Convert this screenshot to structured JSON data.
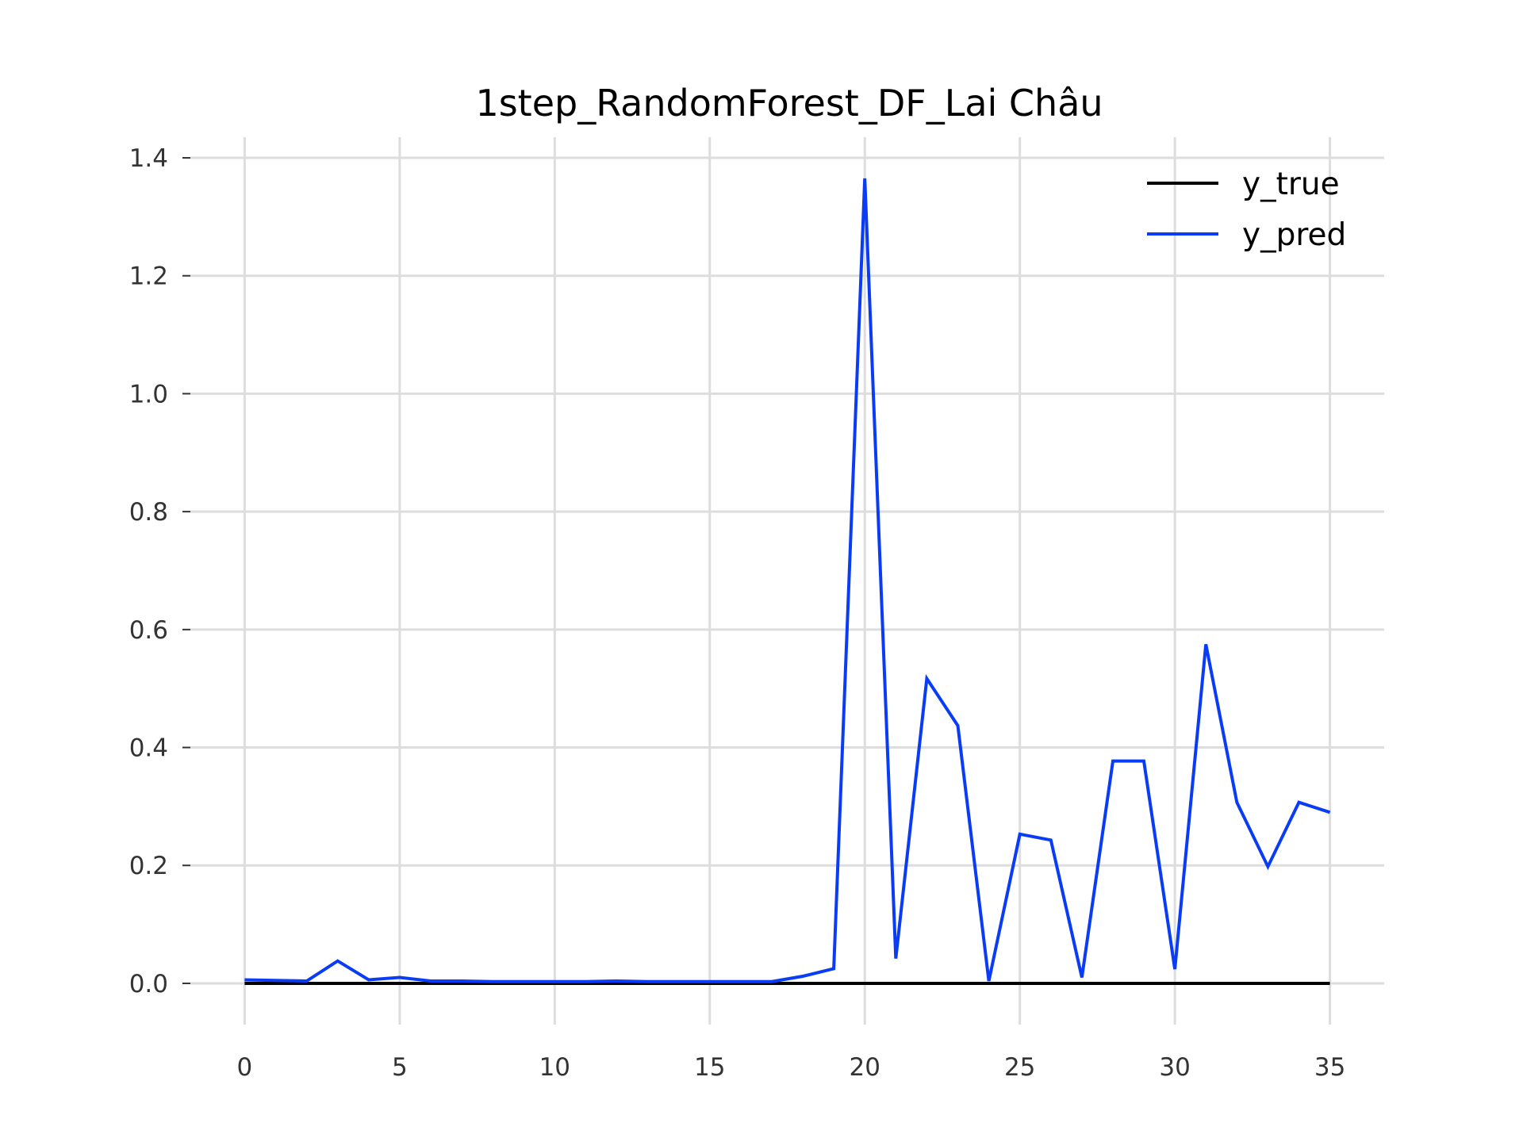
{
  "chart_data": {
    "type": "line",
    "title": "1step_RandomForest_DF_Lai Châu",
    "xlabel": "",
    "ylabel": "",
    "xlim": [
      -1.75,
      36.75
    ],
    "ylim": [
      -0.07,
      1.435
    ],
    "grid": true,
    "legend_position": "top-right",
    "x_ticks": [
      0,
      5,
      10,
      15,
      20,
      25,
      30,
      35
    ],
    "x_tick_labels": [
      "0",
      "5",
      "10",
      "15",
      "20",
      "25",
      "30",
      "35"
    ],
    "y_ticks": [
      0.0,
      0.2,
      0.4,
      0.6,
      0.8,
      1.0,
      1.2,
      1.4
    ],
    "y_tick_labels": [
      "0.0",
      "0.2",
      "0.4",
      "0.6",
      "0.8",
      "1.0",
      "1.2",
      "1.4"
    ],
    "x": [
      0,
      1,
      2,
      3,
      4,
      5,
      6,
      7,
      8,
      9,
      10,
      11,
      12,
      13,
      14,
      15,
      16,
      17,
      18,
      19,
      20,
      21,
      22,
      23,
      24,
      25,
      26,
      27,
      28,
      29,
      30,
      31,
      32,
      33,
      34,
      35
    ],
    "series": [
      {
        "name": "y_true",
        "color": "#000000",
        "values": [
          0,
          0,
          0,
          0,
          0,
          0,
          0,
          0,
          0,
          0,
          0,
          0,
          0,
          0,
          0,
          0,
          0,
          0,
          0,
          0,
          0,
          0,
          0,
          0,
          0,
          0,
          0,
          0,
          0,
          0,
          0,
          0,
          0,
          0,
          0,
          0
        ]
      },
      {
        "name": "y_pred",
        "color": "#0a3cf5",
        "values": [
          0.006,
          0.005,
          0.004,
          0.038,
          0.006,
          0.01,
          0.004,
          0.004,
          0.003,
          0.003,
          0.003,
          0.003,
          0.004,
          0.003,
          0.003,
          0.003,
          0.003,
          0.003,
          0.012,
          0.025,
          1.365,
          0.042,
          0.517,
          0.437,
          0.004,
          0.253,
          0.243,
          0.01,
          0.377,
          0.377,
          0.024,
          0.575,
          0.307,
          0.198,
          0.307,
          0.29
        ]
      }
    ]
  }
}
